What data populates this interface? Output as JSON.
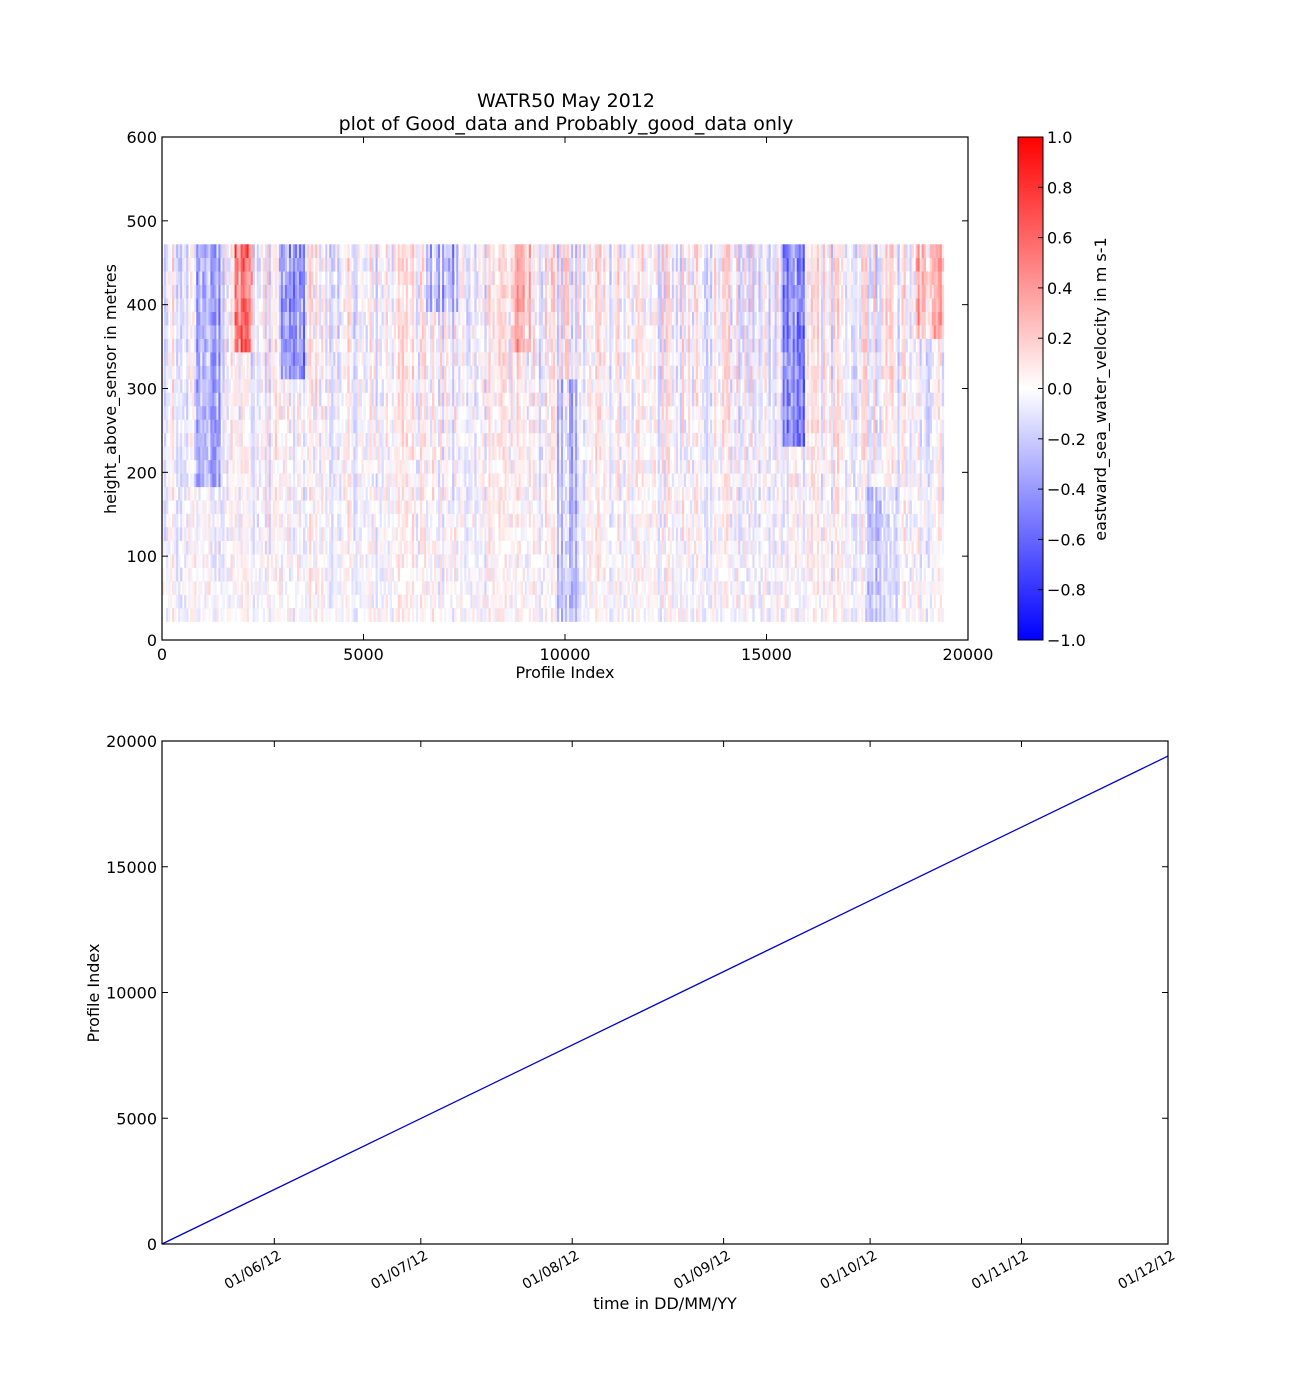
{
  "figure": {
    "title_line1": "WATR50 May 2012",
    "title_line2": "plot of Good_data and Probably_good_data only"
  },
  "chart_data": [
    {
      "type": "heatmap",
      "xlabel": "Profile Index",
      "ylabel": "height_above_sensor in metres",
      "xlim": [
        0,
        20000
      ],
      "ylim": [
        0,
        600
      ],
      "xticks": [
        0,
        5000,
        10000,
        15000,
        20000
      ],
      "yticks": [
        0,
        100,
        200,
        300,
        400,
        500,
        600
      ],
      "data_extent": {
        "x": [
          0,
          19400
        ],
        "y": [
          22,
          472
        ]
      },
      "colormap": "bwr",
      "colors": {
        "low": "#0000ff",
        "mid": "#ffffff",
        "high": "#ff0000"
      },
      "colorbar": {
        "label": "eastward_sea_water_velocity in m s-1",
        "range": [
          -1.0,
          1.0
        ],
        "ticks": [
          "1.0",
          "0.8",
          "0.6",
          "0.4",
          "0.2",
          "0.0",
          "−0.2",
          "−0.4",
          "−0.6",
          "−0.8",
          "−1.0"
        ]
      },
      "features": [
        {
          "x": [
            1800,
            2200
          ],
          "y": [
            330,
            472
          ],
          "value": 0.6
        },
        {
          "x": [
            2900,
            3500
          ],
          "y": [
            310,
            472
          ],
          "value": -0.45
        },
        {
          "x": [
            800,
            1400
          ],
          "y": [
            180,
            472
          ],
          "value": -0.35
        },
        {
          "x": [
            15400,
            15900
          ],
          "y": [
            220,
            472
          ],
          "value": -0.55
        },
        {
          "x": [
            9800,
            10300
          ],
          "y": [
            22,
            300
          ],
          "value": -0.25
        },
        {
          "x": [
            8700,
            9100
          ],
          "y": [
            340,
            472
          ],
          "value": 0.3
        },
        {
          "x": [
            18700,
            19400
          ],
          "y": [
            350,
            472
          ],
          "value": 0.35
        },
        {
          "x": [
            6500,
            7300
          ],
          "y": [
            380,
            472
          ],
          "value": -0.3
        },
        {
          "x": [
            17400,
            18200
          ],
          "y": [
            22,
            180
          ],
          "value": -0.2
        }
      ],
      "grid": false
    },
    {
      "type": "line",
      "xlabel": "time in DD/MM/YY",
      "ylabel": "Profile Index",
      "xlim": [
        "2012-05-09",
        "2012-12-01"
      ],
      "ylim": [
        0,
        20000
      ],
      "xticks": [
        "01/06/12",
        "01/07/12",
        "01/08/12",
        "01/09/12",
        "01/10/12",
        "01/11/12",
        "01/12/12"
      ],
      "xtick_dates": [
        "2012-06-01",
        "2012-07-01",
        "2012-08-01",
        "2012-09-01",
        "2012-10-01",
        "2012-11-01",
        "2012-12-01"
      ],
      "yticks": [
        0,
        5000,
        10000,
        15000,
        20000
      ],
      "series": [
        {
          "x": [
            "2012-05-09",
            "2012-12-01"
          ],
          "values": [
            0,
            19400
          ],
          "color": "#0000cc"
        }
      ],
      "grid": false
    }
  ]
}
